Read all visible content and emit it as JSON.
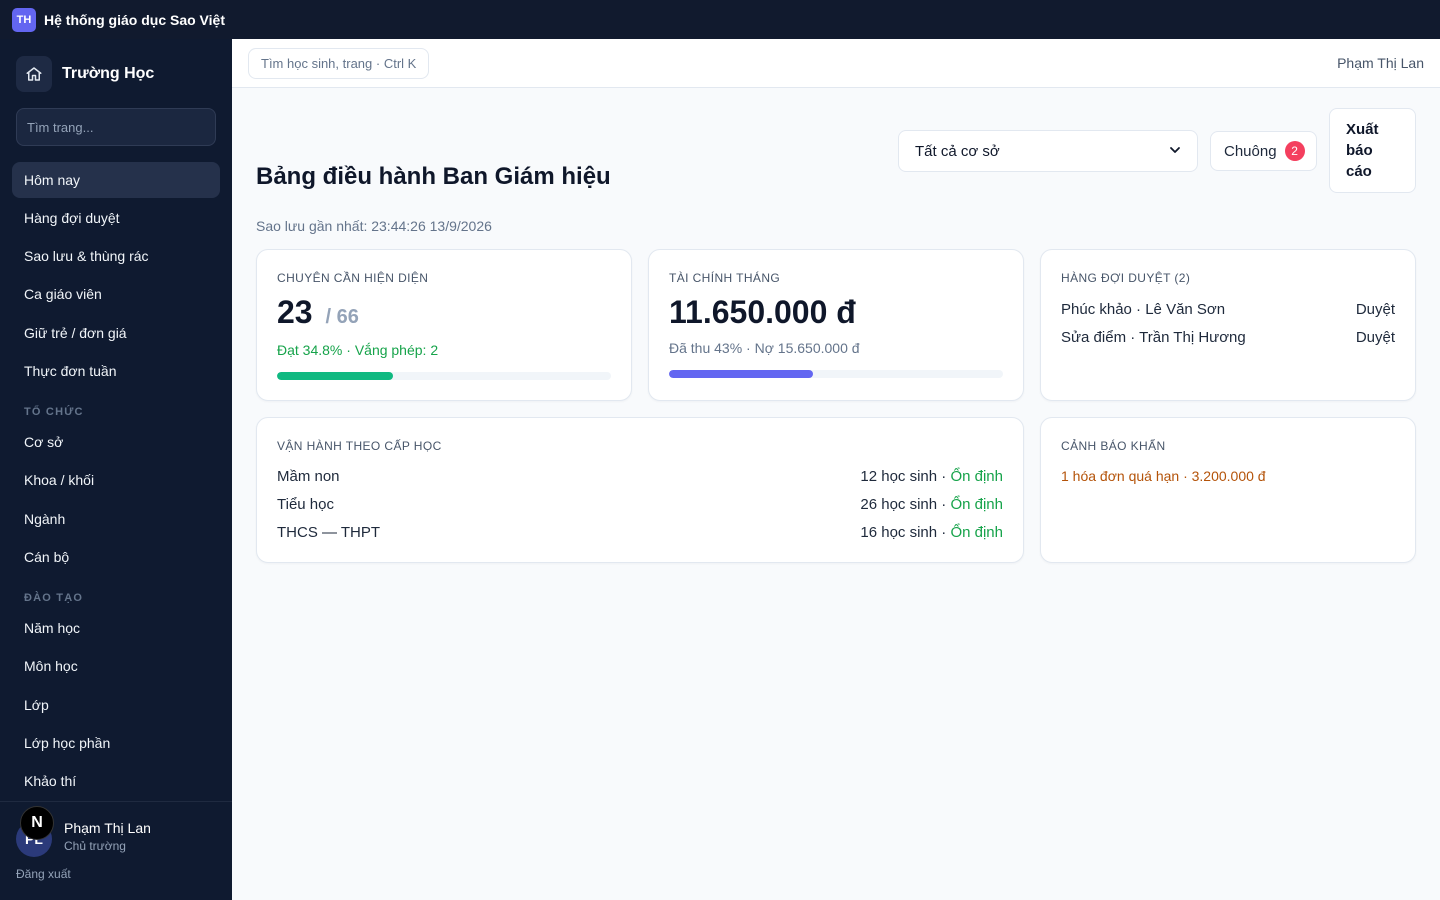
{
  "app": {
    "logo_text": "TH",
    "name": "Hệ thống giáo dục Sao Việt"
  },
  "sidebar": {
    "title": "Trường Học",
    "search_placeholder": "Tìm trang...",
    "items_top": [
      "Hôm nay",
      "Hàng đợi duyệt",
      "Sao lưu & thùng rác",
      "Ca giáo viên",
      "Giữ trẻ / đơn giá",
      "Thực đơn tuần"
    ],
    "section_org": "TỔ CHỨC",
    "items_org": [
      "Cơ sở",
      "Khoa / khối",
      "Ngành",
      "Cán bộ"
    ],
    "section_training": "ĐÀO TẠO",
    "items_training": [
      "Năm học",
      "Môn học",
      "Lớp",
      "Lớp học phần",
      "Khảo thí"
    ],
    "user": {
      "initials": "PL",
      "name": "Phạm Thị Lan",
      "role": "Chủ trường",
      "logout": "Đăng xuất"
    },
    "n_badge": "N"
  },
  "header": {
    "search_label": "Tìm học sinh, trang · Ctrl K",
    "user": "Phạm Thị Lan"
  },
  "page": {
    "title": "Bảng điều hành Ban Giám hiệu",
    "backup": "Sao lưu gần nhất: 23:44:26 13/9/2026",
    "campus_select": "Tất cả cơ sở",
    "bell_label": "Chuông",
    "bell_count": "2",
    "export_label": "Xuất báo cáo"
  },
  "cards": {
    "attendance": {
      "label": "CHUYÊN CẦN HIỆN DIỆN",
      "present": "23",
      "total": "/ 66",
      "summary": "Đạt 34.8% · Vắng phép: 2",
      "progress_percent": 34.8,
      "color": "#10b981"
    },
    "finance": {
      "label": "TÀI CHÍNH THÁNG",
      "amount": "11.650.000 đ",
      "summary": "Đã thu 43% · Nợ 15.650.000 đ",
      "progress_percent": 43,
      "color": "#6366f1"
    },
    "queue": {
      "label": "HÀNG ĐỢI DUYỆT (2)",
      "items": [
        {
          "text": "Phúc khảo · Lê Văn Sơn",
          "action": "Duyệt"
        },
        {
          "text": "Sửa điểm · Trần Thị Hương",
          "action": "Duyệt"
        }
      ]
    },
    "operations": {
      "label": "VẬN HÀNH THEO CẤP HỌC",
      "rows": [
        {
          "level": "Mầm non",
          "count": "12 học sinh ·",
          "status": "Ổn định"
        },
        {
          "level": "Tiểu học",
          "count": "26 học sinh ·",
          "status": "Ổn định"
        },
        {
          "level": "THCS — THPT",
          "count": "16 học sinh ·",
          "status": "Ổn định"
        }
      ]
    },
    "alerts": {
      "label": "CẢNH BÁO KHẨN",
      "text": "1 hóa đơn quá hạn · 3.200.000 đ",
      "color": "#b45309"
    }
  }
}
